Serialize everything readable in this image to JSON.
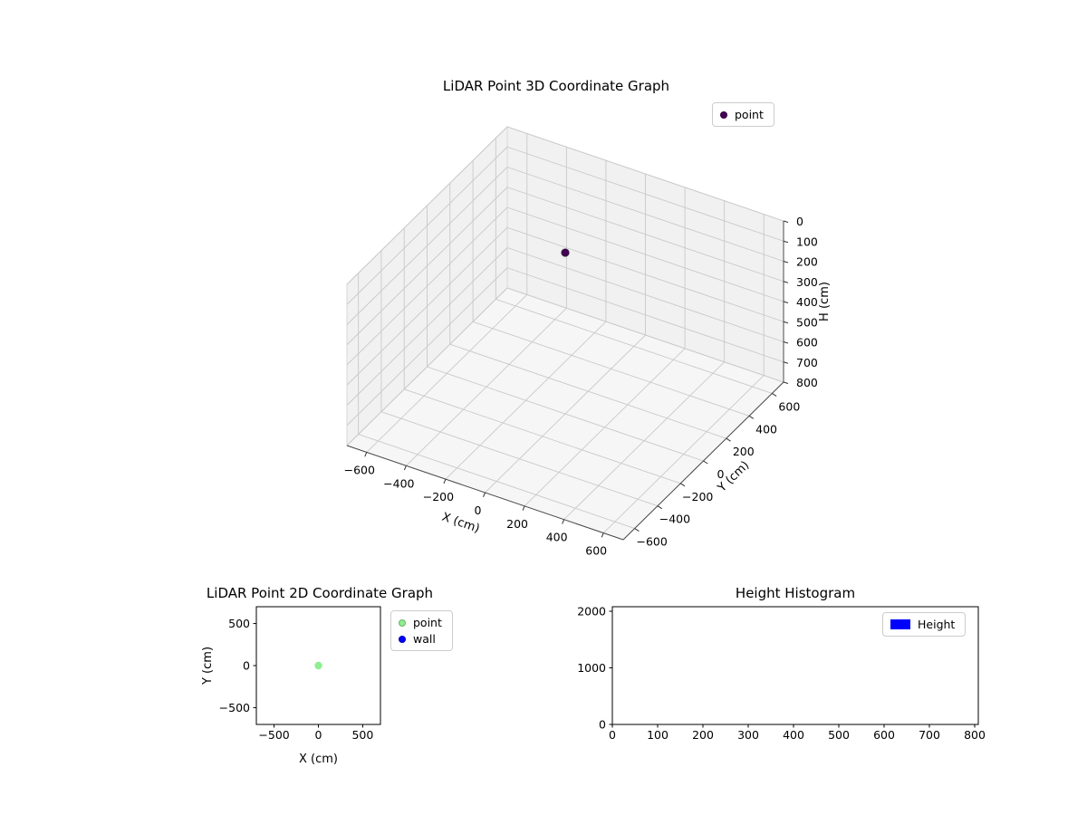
{
  "figure": {
    "background": "#ffffff"
  },
  "chart_data": [
    {
      "type": "scatter3d",
      "title": "LiDAR Point 3D Coordinate Graph",
      "xlabel": "X (cm)",
      "ylabel": "Y (cm)",
      "zlabel": "H (cm)",
      "xlim": [
        -700,
        700
      ],
      "ylim": [
        -700,
        700
      ],
      "zlim": [
        0,
        800
      ],
      "z_axis_inverted": true,
      "grid": true,
      "xticks": [
        -600,
        -400,
        -200,
        0,
        200,
        400,
        600
      ],
      "yticks": [
        -600,
        -400,
        -200,
        0,
        200,
        400,
        600
      ],
      "zticks": [
        0,
        100,
        200,
        300,
        400,
        500,
        600,
        700,
        800
      ],
      "legend_position": "upper right outside",
      "legend": [
        {
          "label": "point",
          "color": "#440154",
          "marker": "dot"
        }
      ],
      "series": [
        {
          "name": "point",
          "color": "#440154",
          "points": [
            {
              "x": 0,
              "y": 0,
              "h": 0
            }
          ]
        }
      ]
    },
    {
      "type": "scatter",
      "title": "LiDAR Point 2D Coordinate Graph",
      "xlabel": "X (cm)",
      "ylabel": "Y (cm)",
      "xlim": [
        -700,
        700
      ],
      "ylim": [
        -700,
        700
      ],
      "grid": false,
      "xticks": [
        -500,
        0,
        500
      ],
      "yticks": [
        -500,
        0,
        500
      ],
      "legend_position": "right outside",
      "legend": [
        {
          "label": "point",
          "color": "#90ee90",
          "marker": "dot"
        },
        {
          "label": "wall",
          "color": "#0000ff",
          "marker": "dot"
        }
      ],
      "series": [
        {
          "name": "point",
          "color": "#90ee90",
          "points": [
            {
              "x": 0,
              "y": 0
            }
          ]
        },
        {
          "name": "wall",
          "color": "#0000ff",
          "points": []
        }
      ]
    },
    {
      "type": "histogram",
      "title": "Height Histogram",
      "xlabel": "",
      "ylabel": "",
      "xlim": [
        0,
        808
      ],
      "ylim": [
        0,
        2080
      ],
      "grid": false,
      "xticks": [
        0,
        100,
        200,
        300,
        400,
        500,
        600,
        700,
        800
      ],
      "yticks": [
        0,
        1000,
        2000
      ],
      "legend_position": "upper right inside",
      "legend": [
        {
          "label": "Height",
          "color": "#0000ff",
          "marker": "patch"
        }
      ],
      "values": []
    }
  ]
}
